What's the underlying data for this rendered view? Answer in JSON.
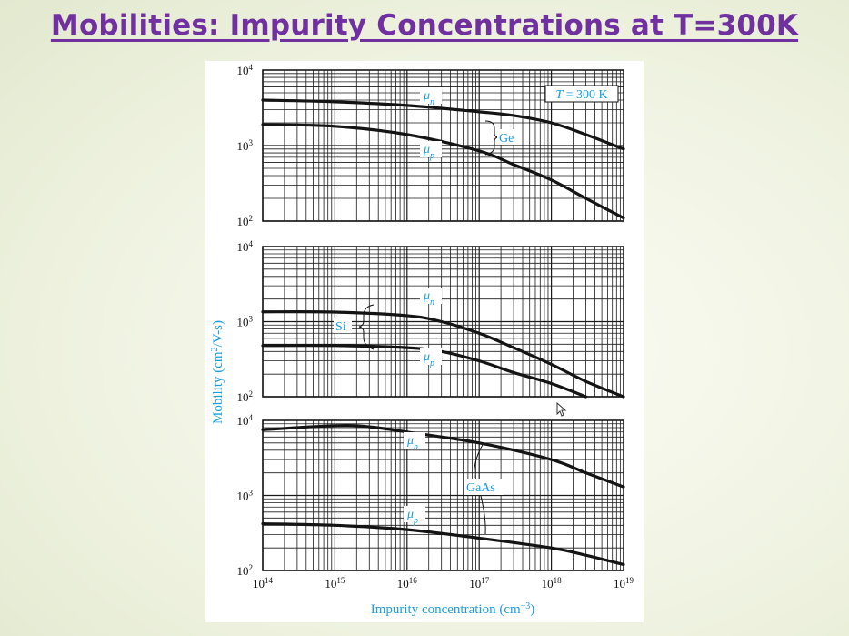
{
  "slide": {
    "title": "Mobilities: Impurity Concentrations at T=300K"
  },
  "figure": {
    "ylabel_main": "Mobility (cm",
    "ylabel_exp": "2",
    "ylabel_tail": "/V-s)",
    "xlabel_main": "Impurity concentration (cm",
    "xlabel_exp": "−3",
    "xlabel_tail": ")"
  },
  "colors": {
    "title": "#7030a0",
    "label_blue": "#1a9ee0",
    "grid": "#1a1a1a",
    "curve": "#141414",
    "slide_bg": "#eef2df"
  },
  "cursor_icon": "mouse-pointer-icon",
  "chart_data": [
    {
      "type": "line",
      "material": "Ge",
      "annotation": "T = 300 K",
      "annotation_prefix": "T",
      "annotation_rest": " = 300 K",
      "x_scale": "log",
      "y_scale": "log",
      "xlim": [
        100000000000000.0,
        1e+19
      ],
      "ylim": [
        100,
        10000
      ],
      "y_ticks": [
        {
          "base": "10",
          "exp": "4",
          "value": 10000
        },
        {
          "base": "10",
          "exp": "3",
          "value": 1000
        },
        {
          "base": "10",
          "exp": "2",
          "value": 100
        }
      ],
      "grid": true,
      "series": [
        {
          "name": "μn",
          "sym": "μ",
          "sub": "n",
          "x": [
            100000000000000.0,
            1000000000000000.0,
            1e+16,
            1e+17,
            3e+17,
            1e+18,
            3e+18,
            1e+19
          ],
          "y": [
            4000,
            3800,
            3400,
            2800,
            2500,
            2000,
            1400,
            900
          ]
        },
        {
          "name": "μp",
          "sym": "μ",
          "sub": "p",
          "x": [
            100000000000000.0,
            1000000000000000.0,
            1e+16,
            1e+17,
            3e+17,
            1e+18,
            3e+18,
            1e+19
          ],
          "y": [
            1900,
            1800,
            1400,
            850,
            560,
            350,
            200,
            110
          ]
        }
      ]
    },
    {
      "type": "line",
      "material": "Si",
      "x_scale": "log",
      "y_scale": "log",
      "xlim": [
        100000000000000.0,
        1e+19
      ],
      "ylim": [
        100,
        10000
      ],
      "y_ticks": [
        {
          "base": "10",
          "exp": "4",
          "value": 10000
        },
        {
          "base": "10",
          "exp": "3",
          "value": 1000
        },
        {
          "base": "10",
          "exp": "2",
          "value": 100
        }
      ],
      "grid": true,
      "series": [
        {
          "name": "μn",
          "sym": "μ",
          "sub": "n",
          "x": [
            100000000000000.0,
            1000000000000000.0,
            1e+16,
            3e+16,
            1e+17,
            3e+17,
            1e+18,
            3e+18,
            1e+19
          ],
          "y": [
            1350,
            1340,
            1200,
            1000,
            700,
            450,
            270,
            160,
            100
          ]
        },
        {
          "name": "μp",
          "sym": "μ",
          "sub": "p",
          "x": [
            100000000000000.0,
            1000000000000000.0,
            1e+16,
            3e+16,
            1e+17,
            3e+17,
            1e+18,
            3e+18
          ],
          "y": [
            480,
            480,
            450,
            400,
            300,
            210,
            150,
            100
          ]
        }
      ]
    },
    {
      "type": "line",
      "material": "GaAs",
      "x_scale": "log",
      "y_scale": "log",
      "xlim": [
        100000000000000.0,
        1e+19
      ],
      "ylim": [
        100,
        10000
      ],
      "y_ticks": [
        {
          "base": "10",
          "exp": "4",
          "value": 10000
        },
        {
          "base": "10",
          "exp": "3",
          "value": 1000
        },
        {
          "base": "10",
          "exp": "2",
          "value": 100
        }
      ],
      "grid": true,
      "x_ticks": [
        {
          "base": "10",
          "exp": "14",
          "value": 100000000000000.0
        },
        {
          "base": "10",
          "exp": "15",
          "value": 1000000000000000.0
        },
        {
          "base": "10",
          "exp": "16",
          "value": 1e+16
        },
        {
          "base": "10",
          "exp": "17",
          "value": 1e+17
        },
        {
          "base": "10",
          "exp": "18",
          "value": 1e+18
        },
        {
          "base": "10",
          "exp": "19",
          "value": 1e+19
        }
      ],
      "series": [
        {
          "name": "μn",
          "sym": "μ",
          "sub": "n",
          "x": [
            100000000000000.0,
            1000000000000000.0,
            3000000000000000.0,
            1e+16,
            1e+17,
            1e+18,
            3e+18,
            1e+19
          ],
          "y": [
            7500,
            8500,
            8200,
            7000,
            5000,
            3000,
            2000,
            1300
          ]
        },
        {
          "name": "μp",
          "sym": "μ",
          "sub": "p",
          "x": [
            100000000000000.0,
            1000000000000000.0,
            1e+16,
            1e+17,
            1e+18,
            3e+18,
            1e+19
          ],
          "y": [
            420,
            400,
            350,
            270,
            200,
            160,
            120
          ]
        }
      ]
    }
  ]
}
